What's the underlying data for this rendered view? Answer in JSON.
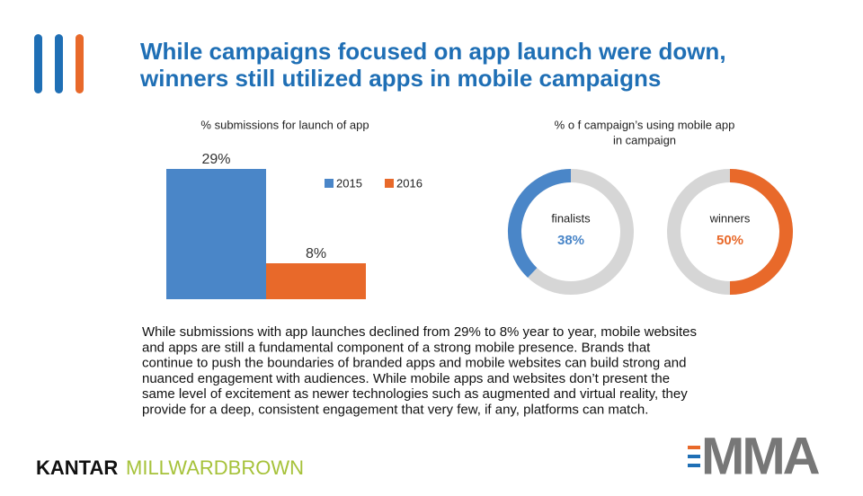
{
  "title": [
    "While campaigns focused on app launch were down,",
    "winners still utilized apps in mobile campaigns"
  ],
  "chart_data": [
    {
      "type": "bar",
      "title": "% submissions for launch of app",
      "categories": [
        null
      ],
      "series": [
        {
          "name": "2015",
          "color": "#4a86c8",
          "values": [
            29
          ],
          "value_labels": [
            "29%"
          ]
        },
        {
          "name": "2016",
          "color": "#e8692a",
          "values": [
            8
          ],
          "value_labels": [
            "8%"
          ]
        }
      ]
    },
    {
      "type": "donut",
      "title": [
        "% o f campaign’s using mobile app",
        "in campaign"
      ],
      "series": [
        {
          "name": "finalists",
          "color": "#4a86c8",
          "values": [
            38
          ],
          "value_labels": [
            "38%"
          ]
        },
        {
          "name": "winners",
          "color": "#e8692a",
          "values": [
            50
          ],
          "value_labels": [
            "50%"
          ]
        }
      ]
    }
  ],
  "body": [
    "While submissions with app launches declined from 29% to 8% year to year, mobile websites",
    "and apps are still a fundamental component of a strong mobile presence. Brands that",
    "continue to push the boundaries of branded apps and mobile websites can build strong and",
    "nuanced engagement with audiences. While mobile apps and websites don’t present the",
    "same level of excitement as newer technologies such as augmented and virtual reality, they",
    "provide for a deep, consistent engagement that very few, if any, platforms can match."
  ],
  "logos": {
    "kantar": "KANTAR",
    "millward": "MILLWARDBROWN",
    "mma": "MMA"
  }
}
